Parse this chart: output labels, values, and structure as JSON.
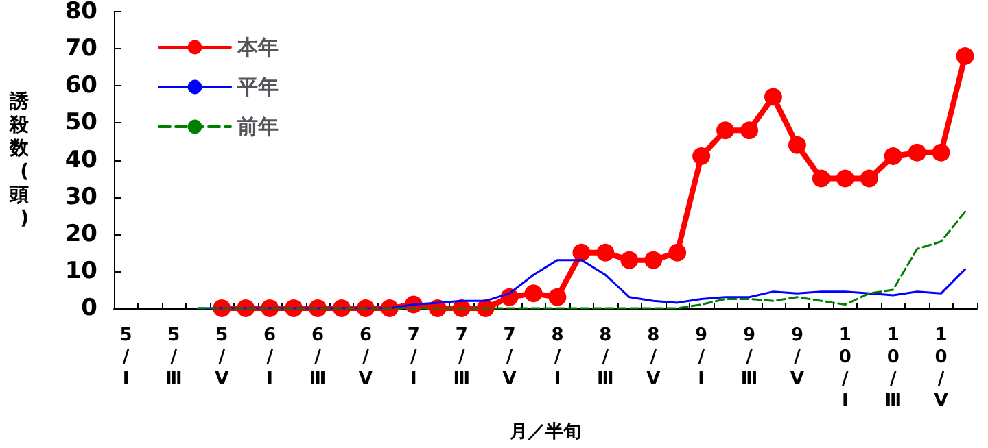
{
  "chart_data": {
    "type": "line",
    "xlabel": "月／半旬",
    "ylabel": "誘殺数(頭)",
    "categories": [
      "5/Ⅰ",
      null,
      "5/Ⅲ",
      null,
      "5/Ⅴ",
      null,
      "6/Ⅰ",
      null,
      "6/Ⅲ",
      null,
      "6/Ⅴ",
      null,
      "7/Ⅰ",
      null,
      "7/Ⅲ",
      null,
      "7/Ⅴ",
      null,
      "8/Ⅰ",
      null,
      "8/Ⅲ",
      null,
      "8/Ⅴ",
      null,
      "9/Ⅰ",
      null,
      "9/Ⅲ",
      null,
      "9/Ⅴ",
      null,
      "10/Ⅰ",
      null,
      "10/Ⅲ",
      null,
      "10/Ⅴ",
      null
    ],
    "series": [
      {
        "name": "本年",
        "color": "#ff0000",
        "marker": "circle",
        "line_style": "solid",
        "values": [
          null,
          null,
          null,
          null,
          0,
          0,
          0,
          0,
          0,
          0,
          0,
          0,
          1,
          0,
          0,
          0,
          3,
          4,
          3,
          15,
          15,
          13,
          13,
          15,
          41,
          48,
          48,
          57,
          44,
          35,
          35,
          35,
          41,
          42,
          42,
          68
        ]
      },
      {
        "name": "平年",
        "color": "#0000ff",
        "marker": "none",
        "line_style": "solid",
        "values": [
          null,
          null,
          null,
          0,
          0,
          0,
          0,
          0,
          0,
          0,
          0,
          0,
          1,
          1.5,
          2,
          2,
          4,
          9,
          13,
          13,
          9,
          3,
          2,
          1.5,
          2.5,
          3,
          3,
          4.5,
          4,
          4.5,
          4.5,
          4,
          3.5,
          4.5,
          4,
          10.5
        ]
      },
      {
        "name": "前年",
        "color": "#008000",
        "marker": "none",
        "line_style": "dashed",
        "values": [
          null,
          null,
          null,
          0,
          0,
          0,
          0,
          0,
          0,
          0,
          0,
          0,
          0,
          0,
          0,
          0,
          0,
          0,
          0,
          0,
          0,
          0,
          0,
          0,
          1,
          2.5,
          2.5,
          2,
          3,
          2,
          1,
          4,
          5,
          16,
          18,
          26
        ]
      }
    ],
    "ylim": [
      0,
      80
    ],
    "yticks": [
      0,
      10,
      20,
      30,
      40,
      50,
      60,
      70,
      80
    ],
    "grid": false,
    "legend": "top left"
  }
}
